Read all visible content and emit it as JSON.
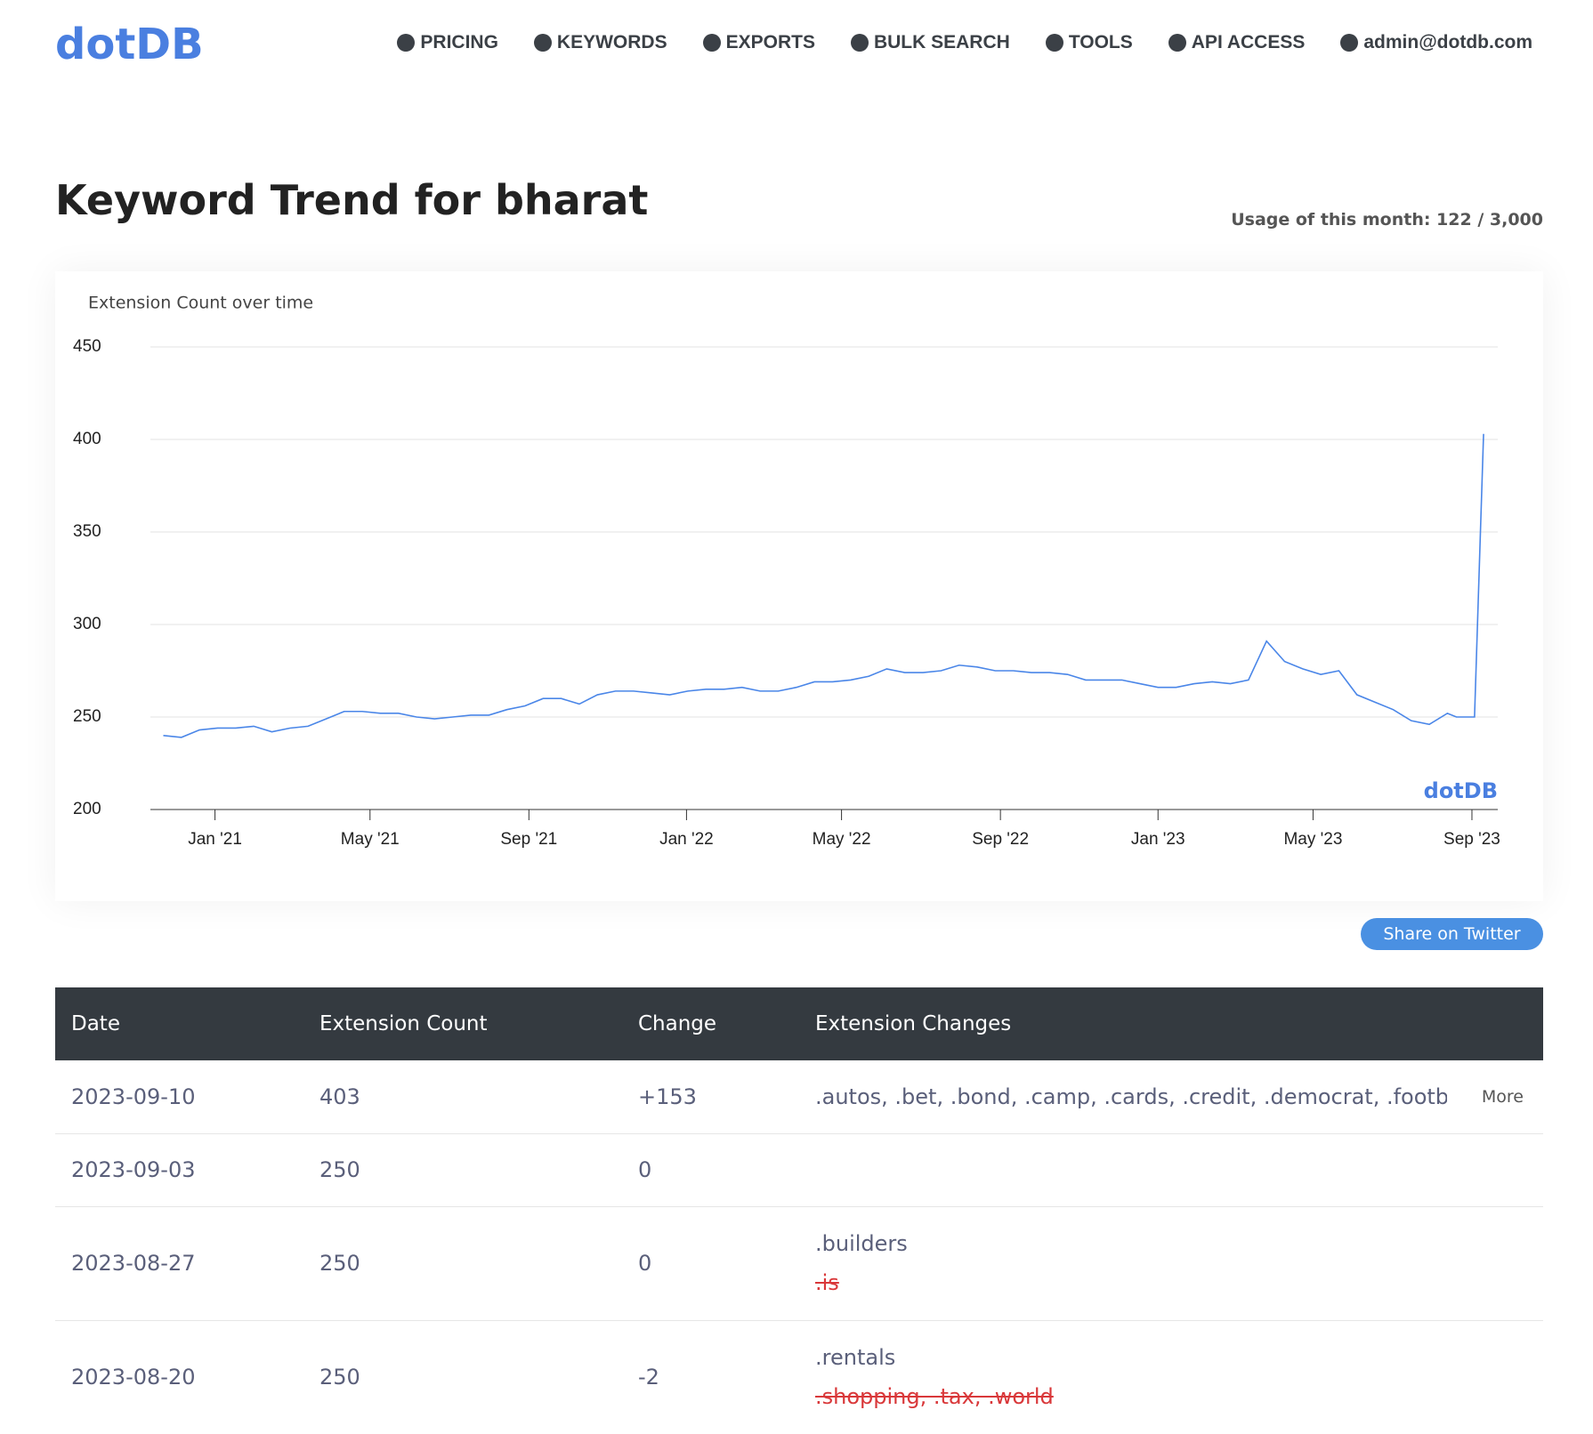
{
  "header": {
    "logo": "dotDB",
    "nav": [
      "PRICING",
      "KEYWORDS",
      "EXPORTS",
      "BULK SEARCH",
      "TOOLS",
      "API ACCESS",
      "admin@dotdb.com"
    ]
  },
  "page": {
    "title": "Keyword Trend for bharat",
    "usage": "Usage of this month: 122 / 3,000",
    "share": "Share on Twitter"
  },
  "chart_data": {
    "type": "line",
    "title": "Extension Count over time",
    "watermark": "dotDB",
    "color": "#4a86e8",
    "x": [
      "2020-11-22",
      "2020-12-06",
      "2020-12-20",
      "2021-01-03",
      "2021-01-17",
      "2021-01-31",
      "2021-02-14",
      "2021-02-28",
      "2021-03-14",
      "2021-03-28",
      "2021-04-11",
      "2021-04-25",
      "2021-05-09",
      "2021-05-23",
      "2021-06-06",
      "2021-06-20",
      "2021-07-04",
      "2021-07-18",
      "2021-08-01",
      "2021-08-15",
      "2021-08-29",
      "2021-09-12",
      "2021-09-26",
      "2021-10-10",
      "2021-10-24",
      "2021-11-07",
      "2021-11-21",
      "2021-12-05",
      "2021-12-19",
      "2022-01-02",
      "2022-01-16",
      "2022-01-30",
      "2022-02-13",
      "2022-02-27",
      "2022-03-13",
      "2022-03-27",
      "2022-04-10",
      "2022-04-24",
      "2022-05-08",
      "2022-05-22",
      "2022-06-05",
      "2022-06-19",
      "2022-07-03",
      "2022-07-17",
      "2022-07-31",
      "2022-08-14",
      "2022-08-28",
      "2022-09-11",
      "2022-09-25",
      "2022-10-09",
      "2022-10-23",
      "2022-11-06",
      "2022-11-20",
      "2022-12-04",
      "2022-12-18",
      "2023-01-01",
      "2023-01-15",
      "2023-01-29",
      "2023-02-12",
      "2023-02-26",
      "2023-03-12",
      "2023-03-26",
      "2023-04-09",
      "2023-04-23",
      "2023-05-07",
      "2023-05-21",
      "2023-06-04",
      "2023-06-18",
      "2023-07-02",
      "2023-07-16",
      "2023-07-30",
      "2023-08-13",
      "2023-08-20",
      "2023-08-27",
      "2023-09-03",
      "2023-09-10"
    ],
    "values": [
      240,
      239,
      243,
      244,
      244,
      245,
      242,
      244,
      245,
      249,
      253,
      253,
      252,
      252,
      250,
      249,
      250,
      251,
      251,
      254,
      256,
      260,
      260,
      257,
      262,
      264,
      264,
      263,
      262,
      264,
      265,
      265,
      266,
      264,
      264,
      266,
      269,
      269,
      270,
      272,
      276,
      274,
      274,
      275,
      278,
      277,
      275,
      275,
      274,
      274,
      273,
      270,
      270,
      270,
      268,
      266,
      266,
      268,
      269,
      268,
      270,
      291,
      280,
      276,
      273,
      275,
      262,
      258,
      254,
      248,
      246,
      252,
      250,
      250,
      250,
      403
    ],
    "xlim": [
      "2020-11-12",
      "2023-09-21"
    ],
    "xticks": [
      {
        "value": "2021-01-01",
        "label": "Jan '21"
      },
      {
        "value": "2021-05-01",
        "label": "May '21"
      },
      {
        "value": "2021-09-01",
        "label": "Sep '21"
      },
      {
        "value": "2022-01-01",
        "label": "Jan '22"
      },
      {
        "value": "2022-05-01",
        "label": "May '22"
      },
      {
        "value": "2022-09-01",
        "label": "Sep '22"
      },
      {
        "value": "2023-01-01",
        "label": "Jan '23"
      },
      {
        "value": "2023-05-01",
        "label": "May '23"
      },
      {
        "value": "2023-09-01",
        "label": "Sep '23"
      }
    ],
    "ylim": [
      200,
      450
    ],
    "yticks": [
      200,
      250,
      300,
      350,
      400,
      450
    ],
    "grid": true
  },
  "table": {
    "columns": [
      "Date",
      "Extension Count",
      "Change",
      "Extension Changes"
    ],
    "more": "More",
    "rows": [
      {
        "date": "2023-09-10",
        "count": "403",
        "change": "+153",
        "added": ".autos, .bet, .bond, .camp, .cards, .credit, .democrat, .football, .fu"
      },
      {
        "date": "2023-09-03",
        "count": "250",
        "change": "0"
      },
      {
        "date": "2023-08-27",
        "count": "250",
        "change": "0",
        "added": ".builders",
        "removed": ".is"
      },
      {
        "date": "2023-08-20",
        "count": "250",
        "change": "-2",
        "added": ".rentals",
        "removed": ".shopping, .tax, .world"
      }
    ]
  }
}
